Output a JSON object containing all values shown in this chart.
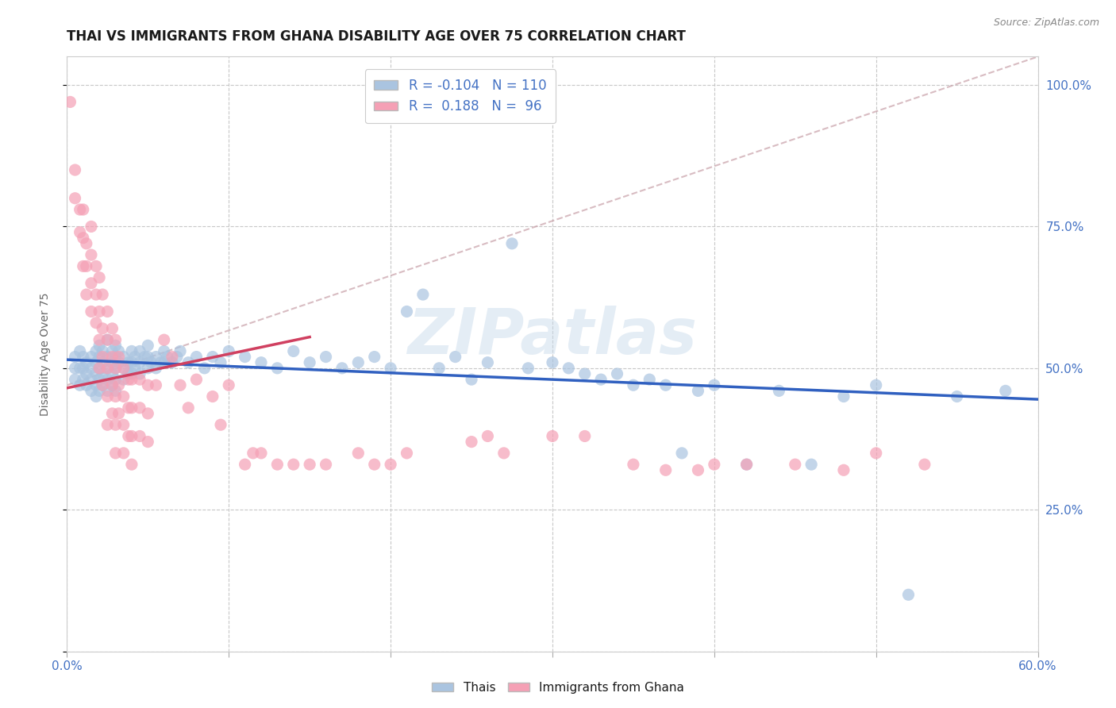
{
  "title": "THAI VS IMMIGRANTS FROM GHANA DISABILITY AGE OVER 75 CORRELATION CHART",
  "source": "Source: ZipAtlas.com",
  "ylabel": "Disability Age Over 75",
  "legend_blue_r": "-0.104",
  "legend_blue_n": "110",
  "legend_pink_r": "0.188",
  "legend_pink_n": "96",
  "legend_label_blue": "Thais",
  "legend_label_pink": "Immigrants from Ghana",
  "watermark": "ZIPatlas",
  "blue_color": "#aac4e0",
  "pink_color": "#f5a0b5",
  "blue_line_color": "#3060c0",
  "pink_line_color": "#d04060",
  "gray_line_color": "#c8a0a8",
  "blue_scatter": [
    [
      0.005,
      0.52
    ],
    [
      0.005,
      0.5
    ],
    [
      0.005,
      0.48
    ],
    [
      0.008,
      0.53
    ],
    [
      0.008,
      0.5
    ],
    [
      0.008,
      0.47
    ],
    [
      0.01,
      0.52
    ],
    [
      0.01,
      0.5
    ],
    [
      0.01,
      0.48
    ],
    [
      0.012,
      0.51
    ],
    [
      0.012,
      0.49
    ],
    [
      0.012,
      0.47
    ],
    [
      0.015,
      0.52
    ],
    [
      0.015,
      0.5
    ],
    [
      0.015,
      0.48
    ],
    [
      0.015,
      0.46
    ],
    [
      0.018,
      0.53
    ],
    [
      0.018,
      0.51
    ],
    [
      0.018,
      0.49
    ],
    [
      0.018,
      0.47
    ],
    [
      0.018,
      0.45
    ],
    [
      0.02,
      0.54
    ],
    [
      0.02,
      0.52
    ],
    [
      0.02,
      0.5
    ],
    [
      0.02,
      0.48
    ],
    [
      0.02,
      0.46
    ],
    [
      0.022,
      0.53
    ],
    [
      0.022,
      0.51
    ],
    [
      0.022,
      0.49
    ],
    [
      0.022,
      0.47
    ],
    [
      0.025,
      0.55
    ],
    [
      0.025,
      0.52
    ],
    [
      0.025,
      0.5
    ],
    [
      0.025,
      0.48
    ],
    [
      0.025,
      0.46
    ],
    [
      0.028,
      0.53
    ],
    [
      0.028,
      0.51
    ],
    [
      0.028,
      0.49
    ],
    [
      0.028,
      0.47
    ],
    [
      0.03,
      0.54
    ],
    [
      0.03,
      0.52
    ],
    [
      0.03,
      0.5
    ],
    [
      0.03,
      0.48
    ],
    [
      0.03,
      0.46
    ],
    [
      0.032,
      0.53
    ],
    [
      0.032,
      0.51
    ],
    [
      0.035,
      0.52
    ],
    [
      0.035,
      0.5
    ],
    [
      0.035,
      0.48
    ],
    [
      0.038,
      0.51
    ],
    [
      0.038,
      0.49
    ],
    [
      0.04,
      0.53
    ],
    [
      0.04,
      0.51
    ],
    [
      0.04,
      0.49
    ],
    [
      0.042,
      0.52
    ],
    [
      0.042,
      0.5
    ],
    [
      0.045,
      0.53
    ],
    [
      0.045,
      0.51
    ],
    [
      0.045,
      0.49
    ],
    [
      0.048,
      0.52
    ],
    [
      0.05,
      0.54
    ],
    [
      0.05,
      0.52
    ],
    [
      0.05,
      0.5
    ],
    [
      0.052,
      0.51
    ],
    [
      0.055,
      0.52
    ],
    [
      0.055,
      0.5
    ],
    [
      0.058,
      0.51
    ],
    [
      0.06,
      0.53
    ],
    [
      0.06,
      0.51
    ],
    [
      0.062,
      0.52
    ],
    [
      0.065,
      0.51
    ],
    [
      0.068,
      0.52
    ],
    [
      0.07,
      0.53
    ],
    [
      0.075,
      0.51
    ],
    [
      0.08,
      0.52
    ],
    [
      0.085,
      0.5
    ],
    [
      0.09,
      0.52
    ],
    [
      0.095,
      0.51
    ],
    [
      0.1,
      0.53
    ],
    [
      0.11,
      0.52
    ],
    [
      0.12,
      0.51
    ],
    [
      0.13,
      0.5
    ],
    [
      0.14,
      0.53
    ],
    [
      0.15,
      0.51
    ],
    [
      0.16,
      0.52
    ],
    [
      0.17,
      0.5
    ],
    [
      0.18,
      0.51
    ],
    [
      0.19,
      0.52
    ],
    [
      0.2,
      0.5
    ],
    [
      0.21,
      0.6
    ],
    [
      0.22,
      0.63
    ],
    [
      0.23,
      0.5
    ],
    [
      0.24,
      0.52
    ],
    [
      0.25,
      0.48
    ],
    [
      0.26,
      0.51
    ],
    [
      0.275,
      0.72
    ],
    [
      0.285,
      0.5
    ],
    [
      0.3,
      0.51
    ],
    [
      0.31,
      0.5
    ],
    [
      0.32,
      0.49
    ],
    [
      0.33,
      0.48
    ],
    [
      0.34,
      0.49
    ],
    [
      0.35,
      0.47
    ],
    [
      0.36,
      0.48
    ],
    [
      0.37,
      0.47
    ],
    [
      0.38,
      0.35
    ],
    [
      0.39,
      0.46
    ],
    [
      0.4,
      0.47
    ],
    [
      0.42,
      0.33
    ],
    [
      0.44,
      0.46
    ],
    [
      0.46,
      0.33
    ],
    [
      0.48,
      0.45
    ],
    [
      0.5,
      0.47
    ],
    [
      0.52,
      0.1
    ],
    [
      0.55,
      0.45
    ],
    [
      0.58,
      0.46
    ]
  ],
  "pink_scatter": [
    [
      0.002,
      0.97
    ],
    [
      0.005,
      0.85
    ],
    [
      0.005,
      0.8
    ],
    [
      0.008,
      0.78
    ],
    [
      0.008,
      0.74
    ],
    [
      0.01,
      0.78
    ],
    [
      0.01,
      0.73
    ],
    [
      0.01,
      0.68
    ],
    [
      0.012,
      0.72
    ],
    [
      0.012,
      0.68
    ],
    [
      0.012,
      0.63
    ],
    [
      0.015,
      0.75
    ],
    [
      0.015,
      0.7
    ],
    [
      0.015,
      0.65
    ],
    [
      0.015,
      0.6
    ],
    [
      0.018,
      0.68
    ],
    [
      0.018,
      0.63
    ],
    [
      0.018,
      0.58
    ],
    [
      0.02,
      0.66
    ],
    [
      0.02,
      0.6
    ],
    [
      0.02,
      0.55
    ],
    [
      0.02,
      0.5
    ],
    [
      0.022,
      0.63
    ],
    [
      0.022,
      0.57
    ],
    [
      0.022,
      0.52
    ],
    [
      0.022,
      0.47
    ],
    [
      0.025,
      0.6
    ],
    [
      0.025,
      0.55
    ],
    [
      0.025,
      0.5
    ],
    [
      0.025,
      0.45
    ],
    [
      0.025,
      0.4
    ],
    [
      0.028,
      0.57
    ],
    [
      0.028,
      0.52
    ],
    [
      0.028,
      0.47
    ],
    [
      0.028,
      0.42
    ],
    [
      0.03,
      0.55
    ],
    [
      0.03,
      0.5
    ],
    [
      0.03,
      0.45
    ],
    [
      0.03,
      0.4
    ],
    [
      0.03,
      0.35
    ],
    [
      0.032,
      0.52
    ],
    [
      0.032,
      0.47
    ],
    [
      0.032,
      0.42
    ],
    [
      0.035,
      0.5
    ],
    [
      0.035,
      0.45
    ],
    [
      0.035,
      0.4
    ],
    [
      0.035,
      0.35
    ],
    [
      0.038,
      0.48
    ],
    [
      0.038,
      0.43
    ],
    [
      0.038,
      0.38
    ],
    [
      0.04,
      0.48
    ],
    [
      0.04,
      0.43
    ],
    [
      0.04,
      0.38
    ],
    [
      0.04,
      0.33
    ],
    [
      0.045,
      0.48
    ],
    [
      0.045,
      0.43
    ],
    [
      0.045,
      0.38
    ],
    [
      0.05,
      0.47
    ],
    [
      0.05,
      0.42
    ],
    [
      0.05,
      0.37
    ],
    [
      0.055,
      0.47
    ],
    [
      0.06,
      0.55
    ],
    [
      0.065,
      0.52
    ],
    [
      0.07,
      0.47
    ],
    [
      0.075,
      0.43
    ],
    [
      0.08,
      0.48
    ],
    [
      0.09,
      0.45
    ],
    [
      0.095,
      0.4
    ],
    [
      0.1,
      0.47
    ],
    [
      0.11,
      0.33
    ],
    [
      0.115,
      0.35
    ],
    [
      0.12,
      0.35
    ],
    [
      0.13,
      0.33
    ],
    [
      0.14,
      0.33
    ],
    [
      0.15,
      0.33
    ],
    [
      0.16,
      0.33
    ],
    [
      0.18,
      0.35
    ],
    [
      0.19,
      0.33
    ],
    [
      0.2,
      0.33
    ],
    [
      0.21,
      0.35
    ],
    [
      0.25,
      0.37
    ],
    [
      0.26,
      0.38
    ],
    [
      0.27,
      0.35
    ],
    [
      0.3,
      0.38
    ],
    [
      0.32,
      0.38
    ],
    [
      0.35,
      0.33
    ],
    [
      0.37,
      0.32
    ],
    [
      0.39,
      0.32
    ],
    [
      0.4,
      0.33
    ],
    [
      0.42,
      0.33
    ],
    [
      0.45,
      0.33
    ],
    [
      0.48,
      0.32
    ],
    [
      0.5,
      0.35
    ],
    [
      0.53,
      0.33
    ]
  ],
  "xlim": [
    0.0,
    0.6
  ],
  "ylim": [
    0.0,
    1.05
  ],
  "xticks": [
    0.0,
    0.1,
    0.2,
    0.3,
    0.4,
    0.5,
    0.6
  ],
  "yticks": [
    0.0,
    0.25,
    0.5,
    0.75,
    1.0
  ],
  "right_ytick_labels": [
    "",
    "25.0%",
    "50.0%",
    "75.0%",
    "100.0%"
  ],
  "grid_color": "#c8c8c8",
  "background_color": "#ffffff"
}
